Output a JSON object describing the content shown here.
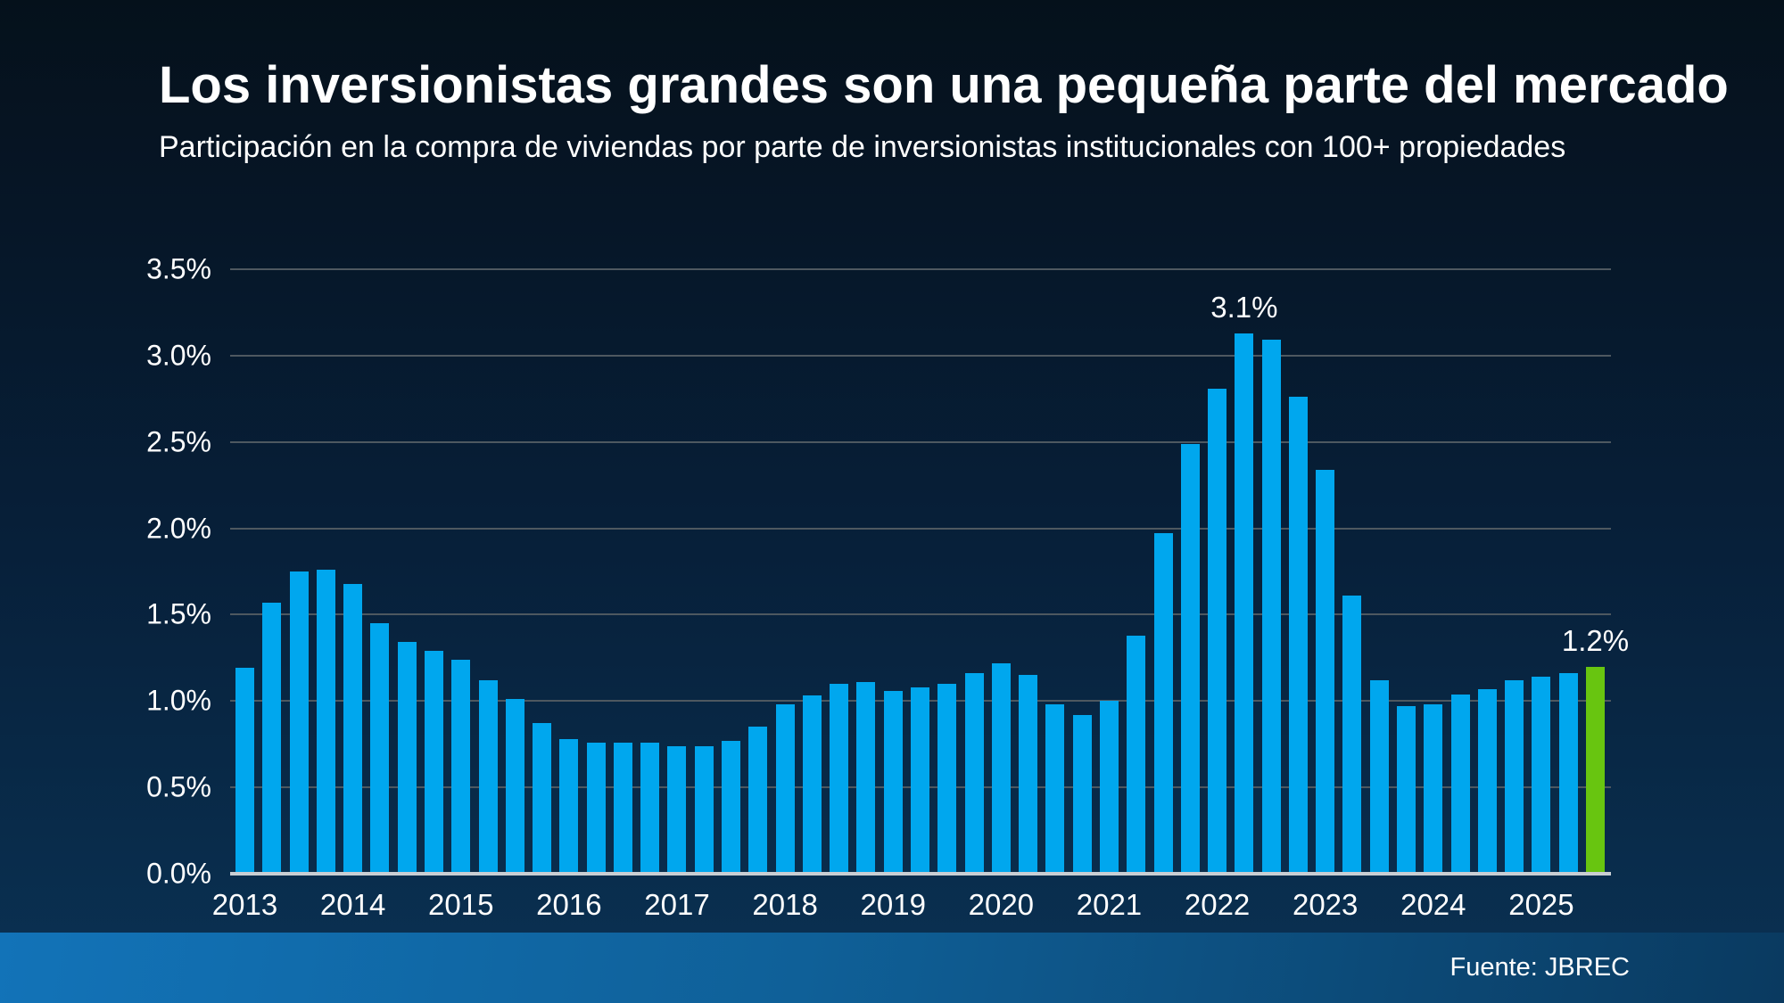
{
  "header": {
    "title": "Los inversionistas grandes son una pequeña parte del mercado",
    "subtitle": "Participación en la compra de viviendas por parte de inversionistas institucionales con 100+ propiedades"
  },
  "footer": {
    "source": "Fuente: JBREC"
  },
  "chart_data": {
    "type": "bar",
    "title": "Los inversionistas grandes son una pequeña parte del mercado",
    "subtitle": "Participación en la compra de viviendas por parte de inversionistas institucionales con 100+ propiedades",
    "xlabel": "",
    "ylabel": "",
    "unit": "%",
    "ylim": [
      0,
      3.5
    ],
    "grid": "horizontal",
    "legend": "none",
    "y_ticks": [
      "3.5%",
      "3.0%",
      "2.5%",
      "2.0%",
      "1.5%",
      "1.0%",
      "0.5%",
      "0.0%"
    ],
    "x_year_labels": [
      "2013",
      "2014",
      "2015",
      "2016",
      "2017",
      "2018",
      "2019",
      "2020",
      "2021",
      "2022",
      "2023",
      "2024",
      "2025"
    ],
    "colors": {
      "bar": "#00a7ee",
      "highlight": "#68c510"
    },
    "points": [
      {
        "year": 2013,
        "quarter": "Q1",
        "value": 1.19
      },
      {
        "year": 2013,
        "quarter": "Q2",
        "value": 1.57
      },
      {
        "year": 2013,
        "quarter": "Q3",
        "value": 1.75
      },
      {
        "year": 2013,
        "quarter": "Q4",
        "value": 1.76
      },
      {
        "year": 2014,
        "quarter": "Q1",
        "value": 1.68
      },
      {
        "year": 2014,
        "quarter": "Q2",
        "value": 1.45
      },
      {
        "year": 2014,
        "quarter": "Q3",
        "value": 1.34
      },
      {
        "year": 2014,
        "quarter": "Q4",
        "value": 1.29
      },
      {
        "year": 2015,
        "quarter": "Q1",
        "value": 1.24
      },
      {
        "year": 2015,
        "quarter": "Q2",
        "value": 1.12
      },
      {
        "year": 2015,
        "quarter": "Q3",
        "value": 1.01
      },
      {
        "year": 2015,
        "quarter": "Q4",
        "value": 0.87
      },
      {
        "year": 2016,
        "quarter": "Q1",
        "value": 0.78
      },
      {
        "year": 2016,
        "quarter": "Q2",
        "value": 0.76
      },
      {
        "year": 2016,
        "quarter": "Q3",
        "value": 0.76
      },
      {
        "year": 2016,
        "quarter": "Q4",
        "value": 0.76
      },
      {
        "year": 2017,
        "quarter": "Q1",
        "value": 0.74
      },
      {
        "year": 2017,
        "quarter": "Q2",
        "value": 0.74
      },
      {
        "year": 2017,
        "quarter": "Q3",
        "value": 0.77
      },
      {
        "year": 2017,
        "quarter": "Q4",
        "value": 0.85
      },
      {
        "year": 2018,
        "quarter": "Q1",
        "value": 0.98
      },
      {
        "year": 2018,
        "quarter": "Q2",
        "value": 1.03
      },
      {
        "year": 2018,
        "quarter": "Q3",
        "value": 1.1
      },
      {
        "year": 2018,
        "quarter": "Q4",
        "value": 1.11
      },
      {
        "year": 2019,
        "quarter": "Q1",
        "value": 1.06
      },
      {
        "year": 2019,
        "quarter": "Q2",
        "value": 1.08
      },
      {
        "year": 2019,
        "quarter": "Q3",
        "value": 1.1
      },
      {
        "year": 2019,
        "quarter": "Q4",
        "value": 1.16
      },
      {
        "year": 2020,
        "quarter": "Q1",
        "value": 1.22
      },
      {
        "year": 2020,
        "quarter": "Q2",
        "value": 1.15
      },
      {
        "year": 2020,
        "quarter": "Q3",
        "value": 0.98
      },
      {
        "year": 2020,
        "quarter": "Q4",
        "value": 0.92
      },
      {
        "year": 2021,
        "quarter": "Q1",
        "value": 1.0
      },
      {
        "year": 2021,
        "quarter": "Q2",
        "value": 1.38
      },
      {
        "year": 2021,
        "quarter": "Q3",
        "value": 1.97
      },
      {
        "year": 2021,
        "quarter": "Q4",
        "value": 2.49
      },
      {
        "year": 2022,
        "quarter": "Q1",
        "value": 2.81
      },
      {
        "year": 2022,
        "quarter": "Q2",
        "value": 3.13
      },
      {
        "year": 2022,
        "quarter": "Q3",
        "value": 3.09
      },
      {
        "year": 2022,
        "quarter": "Q4",
        "value": 2.76
      },
      {
        "year": 2023,
        "quarter": "Q1",
        "value": 2.34
      },
      {
        "year": 2023,
        "quarter": "Q2",
        "value": 1.61
      },
      {
        "year": 2023,
        "quarter": "Q3",
        "value": 1.12
      },
      {
        "year": 2023,
        "quarter": "Q4",
        "value": 0.97
      },
      {
        "year": 2024,
        "quarter": "Q1",
        "value": 0.98
      },
      {
        "year": 2024,
        "quarter": "Q2",
        "value": 1.04
      },
      {
        "year": 2024,
        "quarter": "Q3",
        "value": 1.07
      },
      {
        "year": 2024,
        "quarter": "Q4",
        "value": 1.12
      },
      {
        "year": 2025,
        "quarter": "Q1",
        "value": 1.14
      },
      {
        "year": 2025,
        "quarter": "Q2",
        "value": 1.16
      },
      {
        "year": 2025,
        "quarter": "Q3",
        "value": 1.2,
        "highlight": true
      }
    ],
    "annotations": [
      {
        "index": 37,
        "text": "3.1%"
      },
      {
        "index": 50,
        "text": "1.2%"
      }
    ]
  }
}
